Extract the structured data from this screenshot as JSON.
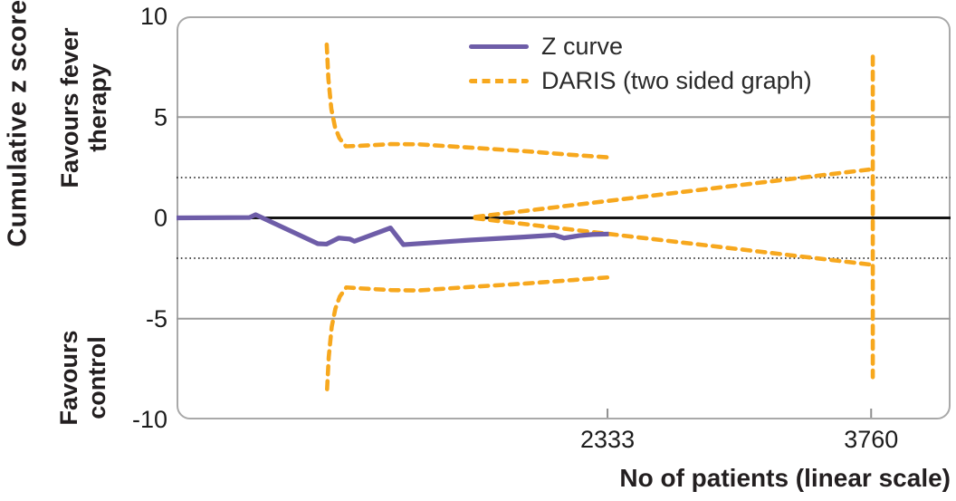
{
  "chart_data": {
    "type": "line",
    "title": "",
    "xlabel": "No of patients (linear scale)",
    "ylabel": "Cumulative z score",
    "xlim": [
      0,
      4190
    ],
    "ylim": [
      -10,
      10
    ],
    "xticks": [
      2333,
      3760
    ],
    "yticks": [
      10,
      5,
      0,
      -5,
      -10
    ],
    "zero_line": 0,
    "gridlines_solid": [
      5,
      -5
    ],
    "gridlines_dotted": [
      2,
      -2
    ],
    "grid_color": "#9b9b9b",
    "reference_line_color": "#141414",
    "border_color": "#a9a9a9",
    "text_color": "#1c1c1c",
    "legend_position": "top-center-inside",
    "annotations": {
      "y_axis_title": "Cumulative z score",
      "upper_region": [
        "Favours fever",
        "therapy"
      ],
      "lower_region": [
        "Favours",
        "control"
      ],
      "x_axis_title": "No of patients (linear scale)"
    },
    "series": [
      {
        "name": "Z curve",
        "color": "#6E5DA8",
        "style": "solid",
        "points": [
          [
            0,
            0
          ],
          [
            395,
            0.02
          ],
          [
            428,
            0.16
          ],
          [
            765,
            -1.28
          ],
          [
            812,
            -1.3
          ],
          [
            878,
            -1.0
          ],
          [
            938,
            -1.05
          ],
          [
            963,
            -1.16
          ],
          [
            1158,
            -0.5
          ],
          [
            1228,
            -1.33
          ],
          [
            1590,
            -1.1
          ],
          [
            1878,
            -0.95
          ],
          [
            2045,
            -0.85
          ],
          [
            2098,
            -1.0
          ],
          [
            2180,
            -0.88
          ],
          [
            2255,
            -0.82
          ],
          [
            2340,
            -0.8
          ]
        ]
      },
      {
        "name": "DARIS (two sided graph)",
        "color": "#F7A81E",
        "style": "dashed",
        "segments": [
          {
            "id": "upper-superiority-boundary",
            "points": [
              [
                813,
                8.6
              ],
              [
                822,
                6.9
              ],
              [
                838,
                5.4
              ],
              [
                858,
                4.5
              ],
              [
                882,
                3.95
              ],
              [
                917,
                3.55
              ],
              [
                1000,
                3.58
              ],
              [
                1160,
                3.66
              ],
              [
                1310,
                3.65
              ],
              [
                1600,
                3.48
              ],
              [
                1900,
                3.3
              ],
              [
                2150,
                3.12
              ],
              [
                2340,
                3.0
              ]
            ]
          },
          {
            "id": "lower-superiority-boundary",
            "points": [
              [
                815,
                -8.5
              ],
              [
                824,
                -6.9
              ],
              [
                840,
                -5.4
              ],
              [
                860,
                -4.5
              ],
              [
                884,
                -3.9
              ],
              [
                919,
                -3.45
              ],
              [
                1000,
                -3.5
              ],
              [
                1160,
                -3.58
              ],
              [
                1310,
                -3.6
              ],
              [
                1600,
                -3.42
              ],
              [
                1900,
                -3.25
              ],
              [
                2150,
                -3.08
              ],
              [
                2340,
                -2.95
              ]
            ]
          },
          {
            "id": "upper-futility-boundary",
            "points": [
              [
                1617,
                0.05
              ],
              [
                3769,
                2.42
              ]
            ]
          },
          {
            "id": "lower-futility-boundary",
            "points": [
              [
                1617,
                -0.02
              ],
              [
                3769,
                -2.33
              ]
            ]
          },
          {
            "id": "required-information-size-line",
            "points": [
              [
                3769,
                8.0
              ],
              [
                3769,
                -7.9
              ]
            ]
          }
        ]
      }
    ]
  }
}
